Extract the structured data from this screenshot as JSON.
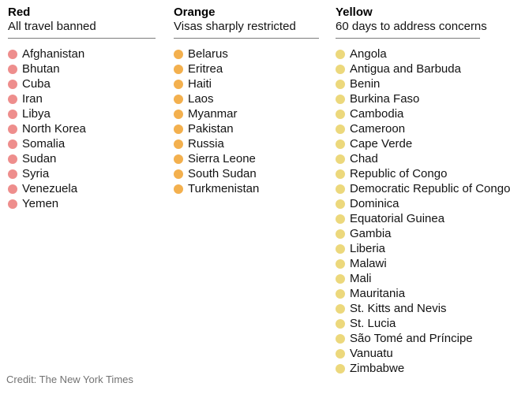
{
  "chart_data": {
    "type": "table",
    "columns": [
      {
        "header": "Red",
        "subheader": "All travel banned",
        "dot_color": "#ee8e8d",
        "items": [
          "Afghanistan",
          "Bhutan",
          "Cuba",
          "Iran",
          "Libya",
          "North Korea",
          "Somalia",
          "Sudan",
          "Syria",
          "Venezuela",
          "Yemen"
        ]
      },
      {
        "header": "Orange",
        "subheader": "Visas sharply restricted",
        "dot_color": "#f3b04e",
        "items": [
          "Belarus",
          "Eritrea",
          "Haiti",
          "Laos",
          "Myanmar",
          "Pakistan",
          "Russia",
          "Sierra Leone",
          "South Sudan",
          "Turkmenistan"
        ]
      },
      {
        "header": "Yellow",
        "subheader": "60 days to address concerns",
        "dot_color": "#ecd87c",
        "items": [
          "Angola",
          "Antigua and Barbuda",
          "Benin",
          "Burkina Faso",
          "Cambodia",
          "Cameroon",
          "Cape Verde",
          "Chad",
          "Republic of Congo",
          "Democratic Republic of Congo",
          "Dominica",
          "Equatorial Guinea",
          "Gambia",
          "Liberia",
          "Malawi",
          "Mali",
          "Mauritania",
          "St. Kitts and Nevis",
          "St. Lucia",
          "São Tomé and Príncipe",
          "Vanuatu",
          "Zimbabwe"
        ]
      }
    ],
    "layout": {
      "legend_position": "none",
      "grid": false
    }
  },
  "credit": "Credit: The New York Times"
}
